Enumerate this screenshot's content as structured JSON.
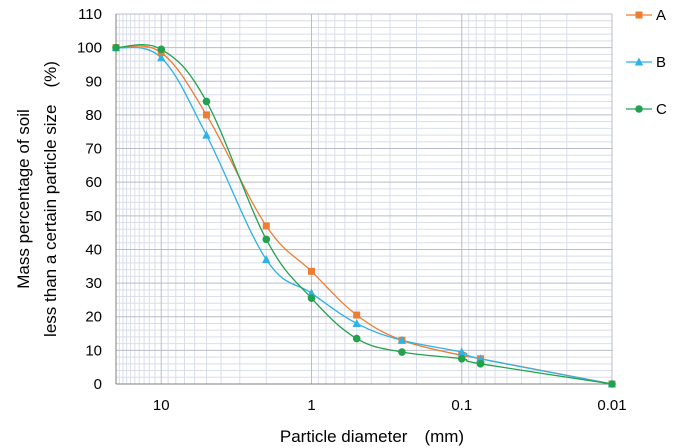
{
  "chart_data": {
    "type": "line",
    "title": "",
    "xlabel": "Particle diameter　(mm)",
    "ylabel_line1": "Mass percentage of soil",
    "ylabel_line2": "less than a certain particle size　(%)",
    "x_scale": "log",
    "x_reversed": true,
    "xlim": [
      20,
      0.01
    ],
    "ylim": [
      0,
      110
    ],
    "x_ticks": [
      {
        "value": 10,
        "label": "10"
      },
      {
        "value": 1,
        "label": "1"
      },
      {
        "value": 0.1,
        "label": "0.1"
      },
      {
        "value": 0.01,
        "label": "0.01"
      }
    ],
    "y_ticks": [
      0,
      10,
      20,
      30,
      40,
      50,
      60,
      70,
      80,
      90,
      100,
      110
    ],
    "y_tick_labels": [
      "0",
      "10",
      "20",
      "30",
      "40",
      "50",
      "60",
      "70",
      "80",
      "90",
      "100",
      "110"
    ],
    "grid": true,
    "legend_position": "right",
    "series": [
      {
        "name": "A",
        "color": "#ED7D31",
        "marker": "square",
        "points": [
          [
            20,
            100
          ],
          [
            10,
            98.5
          ],
          [
            5,
            80
          ],
          [
            2,
            47
          ],
          [
            1,
            33.5
          ],
          [
            0.5,
            20.5
          ],
          [
            0.25,
            13
          ],
          [
            0.1,
            8.5
          ],
          [
            0.075,
            7.5
          ],
          [
            0.01,
            0
          ]
        ]
      },
      {
        "name": "B",
        "color": "#2FB2E6",
        "marker": "triangle",
        "points": [
          [
            20,
            100
          ],
          [
            10,
            97
          ],
          [
            5,
            74
          ],
          [
            2,
            37
          ],
          [
            1,
            27
          ],
          [
            0.5,
            18
          ],
          [
            0.25,
            13
          ],
          [
            0.1,
            9.5
          ],
          [
            0.075,
            7.5
          ],
          [
            0.01,
            0
          ]
        ]
      },
      {
        "name": "C",
        "color": "#23A24D",
        "marker": "circle",
        "points": [
          [
            20,
            100
          ],
          [
            10,
            99.5
          ],
          [
            5,
            84
          ],
          [
            2,
            43
          ],
          [
            1,
            25.5
          ],
          [
            0.5,
            13.5
          ],
          [
            0.25,
            9.5
          ],
          [
            0.1,
            7.5
          ],
          [
            0.075,
            6
          ],
          [
            0.01,
            0
          ]
        ]
      }
    ]
  }
}
